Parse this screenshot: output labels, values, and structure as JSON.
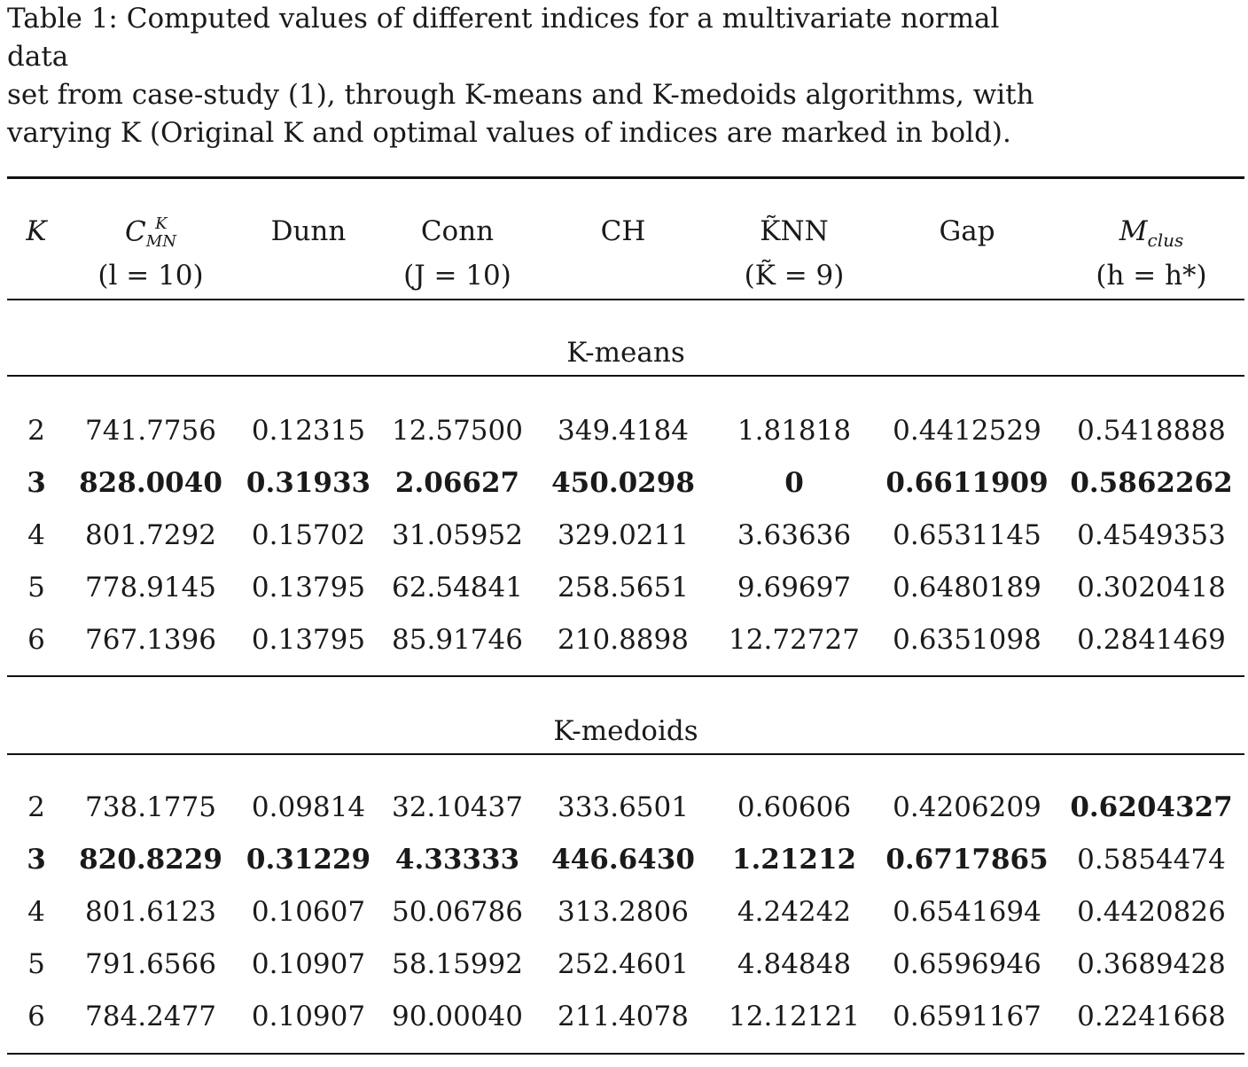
{
  "caption": {
    "line1": "Table 1: Computed values of different indices for a multivariate normal data",
    "line2": "set from case-study (1), through K-means and K-medoids algorithms, with",
    "line3": "varying K (Original K and optimal values of indices are marked in bold)."
  },
  "header": {
    "k": "K",
    "cmn": "C",
    "cmn_sup": "K",
    "cmn_sub": "MN",
    "cmn_param": "(l = 10)",
    "dunn": "Dunn",
    "conn": "Conn",
    "conn_param": "(J = 10)",
    "ch": "CH",
    "knn": "K̃NN",
    "knn_param": "(K̃ = 9)",
    "gap": "Gap",
    "mclus": "M",
    "mclus_sub": "clus",
    "mclus_param": "(h = h*)"
  },
  "sections": [
    {
      "title": "K-means",
      "rows": [
        {
          "k": "2",
          "cmn": "741.7756",
          "dunn": "0.12315",
          "conn": "12.57500",
          "ch": "349.4184",
          "knn": "1.81818",
          "gap": "0.4412529",
          "mclus": "0.5418888",
          "bold": []
        },
        {
          "k": "3",
          "cmn": "828.0040",
          "dunn": "0.31933",
          "conn": "2.06627",
          "ch": "450.0298",
          "knn": "0",
          "gap": "0.6611909",
          "mclus": "0.5862262",
          "bold": [
            "k",
            "cmn",
            "dunn",
            "conn",
            "ch",
            "knn",
            "gap",
            "mclus"
          ]
        },
        {
          "k": "4",
          "cmn": "801.7292",
          "dunn": "0.15702",
          "conn": "31.05952",
          "ch": "329.0211",
          "knn": "3.63636",
          "gap": "0.6531145",
          "mclus": "0.4549353",
          "bold": []
        },
        {
          "k": "5",
          "cmn": "778.9145",
          "dunn": "0.13795",
          "conn": "62.54841",
          "ch": "258.5651",
          "knn": "9.69697",
          "gap": "0.6480189",
          "mclus": "0.3020418",
          "bold": []
        },
        {
          "k": "6",
          "cmn": "767.1396",
          "dunn": "0.13795",
          "conn": "85.91746",
          "ch": "210.8898",
          "knn": "12.72727",
          "gap": "0.6351098",
          "mclus": "0.2841469",
          "bold": []
        }
      ]
    },
    {
      "title": "K-medoids",
      "rows": [
        {
          "k": "2",
          "cmn": "738.1775",
          "dunn": "0.09814",
          "conn": "32.10437",
          "ch": "333.6501",
          "knn": "0.60606",
          "gap": "0.4206209",
          "mclus": "0.6204327",
          "bold": [
            "mclus"
          ]
        },
        {
          "k": "3",
          "cmn": "820.8229",
          "dunn": "0.31229",
          "conn": "4.33333",
          "ch": "446.6430",
          "knn": "1.21212",
          "gap": "0.6717865",
          "mclus": "0.5854474",
          "bold": [
            "k",
            "cmn",
            "dunn",
            "conn",
            "ch",
            "knn",
            "gap"
          ]
        },
        {
          "k": "4",
          "cmn": "801.6123",
          "dunn": "0.10607",
          "conn": "50.06786",
          "ch": "313.2806",
          "knn": "4.24242",
          "gap": "0.6541694",
          "mclus": "0.4420826",
          "bold": []
        },
        {
          "k": "5",
          "cmn": "791.6566",
          "dunn": "0.10907",
          "conn": "58.15992",
          "ch": "252.4601",
          "knn": "4.84848",
          "gap": "0.6596946",
          "mclus": "0.3689428",
          "bold": []
        },
        {
          "k": "6",
          "cmn": "784.2477",
          "dunn": "0.10907",
          "conn": "90.00040",
          "ch": "211.4078",
          "knn": "12.12121",
          "gap": "0.6591167",
          "mclus": "0.2241668",
          "bold": []
        }
      ]
    }
  ]
}
